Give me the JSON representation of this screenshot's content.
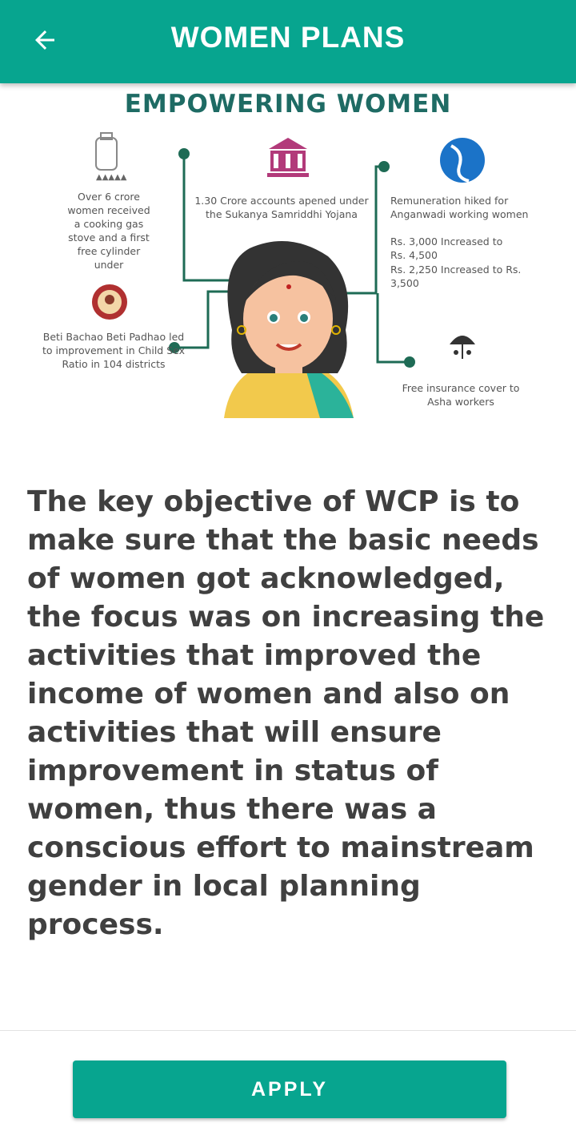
{
  "appbar": {
    "title": "WOMEN PLANS",
    "back_icon": "arrow-left-icon",
    "color": "#07a58f"
  },
  "infographic": {
    "title": "EMPOWERING WOMEN",
    "gas_text": "Over 6 crore women received a cooking gas stove and a first free cylinder under",
    "accounts_text": "1.30 Crore accounts apened under the Sukanya Samriddhi Yojana",
    "remuneration_text": "Remuneration hiked for Anganwadi working women",
    "increase_1": "Rs. 3,000 Increased to Rs. 4,500",
    "increase_2": "Rs. 2,250 Increased to Rs. 3,500",
    "beti_text": "Beti Bachao Beti Padhao led to improvement in Child Sex Ratio in 104 districts",
    "insurance_text": "Free insurance cover to Asha workers",
    "line_color": "#1e6b55"
  },
  "main": {
    "description": "The key objective of WCP is to make sure that the basic needs of women got acknowledged, the focus was on increasing the activities that improved the income of women and also on activities that will ensure improvement in status of women, thus there was a conscious effort to mainstream gender in local planning process."
  },
  "footer": {
    "apply_label": "APPLY"
  }
}
